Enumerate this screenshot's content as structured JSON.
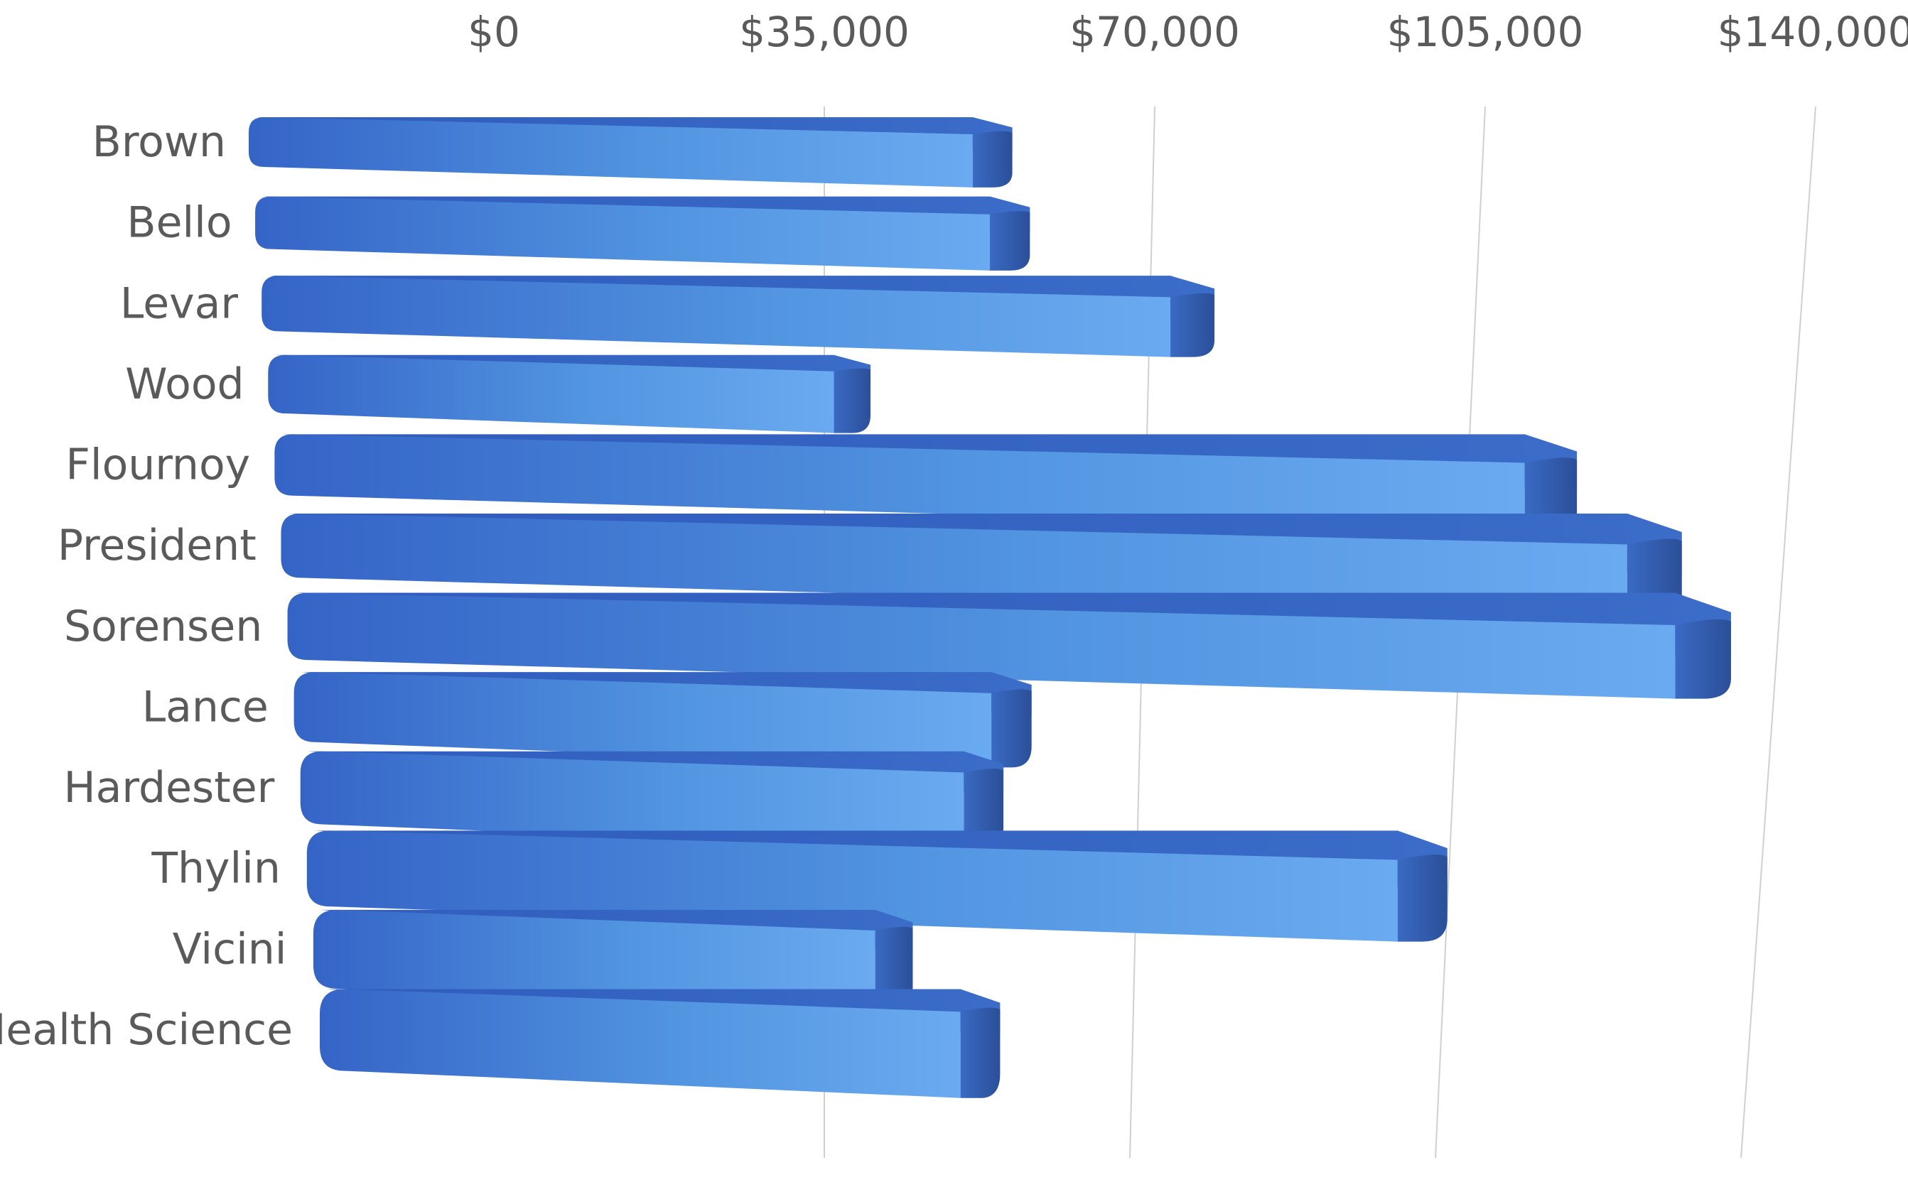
{
  "chart_data": {
    "type": "bar",
    "orientation": "horizontal",
    "style": "3d-perspective",
    "categories": [
      "Brown",
      "Bello",
      "Levar",
      "Wood",
      "Flournoy",
      "President",
      "Sorensen",
      "Lance",
      "Hardester",
      "Thylin",
      "Vicini",
      "Health Science"
    ],
    "values": [
      55000,
      57000,
      77000,
      40000,
      117000,
      129000,
      135000,
      58000,
      55000,
      105000,
      45000,
      55000
    ],
    "x_ticks": [
      "$0",
      "$35,000",
      "$70,000",
      "$105,000",
      "$140,000"
    ],
    "x_tick_values": [
      0,
      35000,
      70000,
      105000,
      140000
    ],
    "xlim": [
      0,
      140000
    ],
    "title": "",
    "xlabel": "",
    "ylabel": "",
    "grid": true,
    "legend": "none",
    "colors": {
      "bar_light": "#5d9ee6",
      "bar_mid": "#3a73d1",
      "bar_dark": "#2a55b0",
      "bar_end": "#2d4f93",
      "gridline": "#d0d0d0"
    }
  }
}
